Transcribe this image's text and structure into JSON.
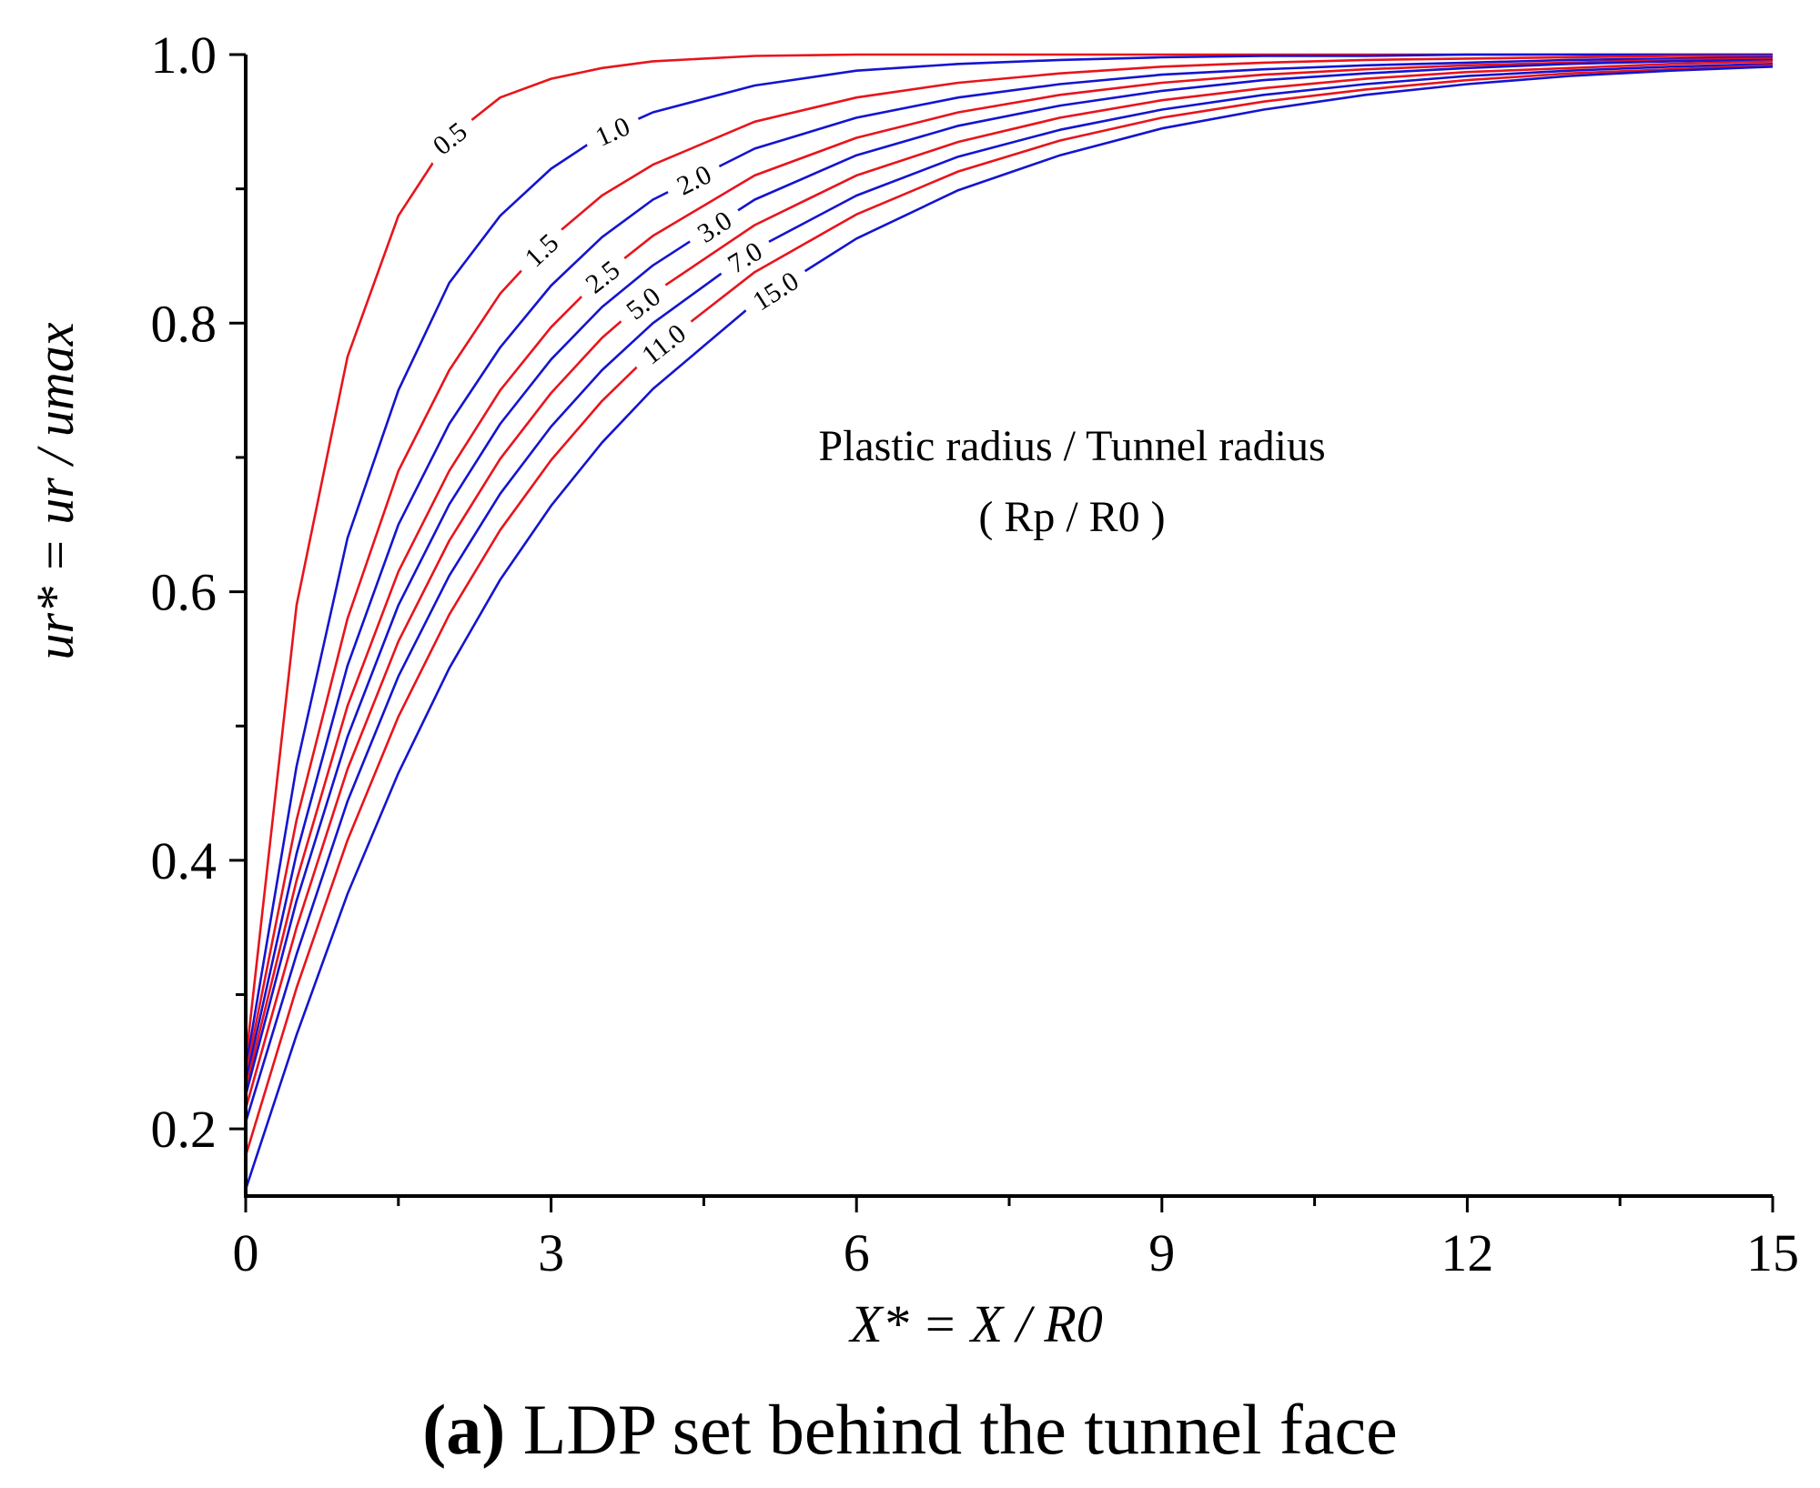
{
  "chart_data": {
    "type": "line",
    "title": "",
    "xlabel": "X* = X / R0",
    "ylabel": "ur* = ur / umax",
    "xlim": [
      0,
      15
    ],
    "ylim": [
      0.15,
      1.0
    ],
    "x_ticks": [
      "0",
      "3",
      "6",
      "9",
      "12",
      "15"
    ],
    "y_ticks": [
      "0.2",
      "0.4",
      "0.6",
      "0.8",
      "1.0"
    ],
    "x_minor_step": 1.5,
    "y_minor_step": 0.1,
    "annotation": {
      "line1": "Plastic radius / Tunnel radius",
      "line2": "( Rp / R0 )"
    },
    "legend_title": "Plastic radius / Tunnel radius (Rp / R0)",
    "colors": {
      "red": "#e8141c",
      "blue": "#1414d0",
      "axis": "#000000"
    },
    "x": [
      0,
      0.5,
      1,
      1.5,
      2,
      2.5,
      3,
      3.5,
      4,
      5,
      6,
      7,
      8,
      9,
      10,
      11,
      12,
      13,
      14,
      15
    ],
    "series": [
      {
        "name": "0.5",
        "color": "red",
        "label_x": 2.0,
        "values": [
          0.25,
          0.59,
          0.775,
          0.88,
          0.938,
          0.968,
          0.982,
          0.99,
          0.995,
          0.999,
          1.0,
          1.0,
          1.0,
          1.0,
          1.0,
          1.0,
          1.0,
          1.0,
          1.0,
          1.0
        ]
      },
      {
        "name": "1.0",
        "color": "blue",
        "label_x": 3.6,
        "values": [
          0.245,
          0.47,
          0.64,
          0.75,
          0.83,
          0.88,
          0.915,
          0.94,
          0.957,
          0.977,
          0.988,
          0.993,
          0.996,
          0.998,
          0.999,
          0.999,
          1.0,
          1.0,
          1.0,
          1.0
        ]
      },
      {
        "name": "1.5",
        "color": "red",
        "label_x": 2.9,
        "values": [
          0.24,
          0.43,
          0.58,
          0.69,
          0.765,
          0.822,
          0.863,
          0.895,
          0.918,
          0.95,
          0.968,
          0.979,
          0.986,
          0.991,
          0.994,
          0.996,
          0.997,
          0.998,
          0.999,
          0.999
        ]
      },
      {
        "name": "2.0",
        "color": "blue",
        "label_x": 4.4,
        "values": [
          0.235,
          0.405,
          0.545,
          0.65,
          0.725,
          0.782,
          0.828,
          0.864,
          0.892,
          0.93,
          0.953,
          0.968,
          0.978,
          0.985,
          0.989,
          0.992,
          0.994,
          0.996,
          0.997,
          0.998
        ]
      },
      {
        "name": "2.5",
        "color": "red",
        "label_x": 3.5,
        "values": [
          0.23,
          0.385,
          0.515,
          0.615,
          0.69,
          0.75,
          0.797,
          0.835,
          0.865,
          0.91,
          0.938,
          0.957,
          0.97,
          0.979,
          0.985,
          0.989,
          0.992,
          0.994,
          0.996,
          0.997
        ]
      },
      {
        "name": "3.0",
        "color": "blue",
        "label_x": 4.6,
        "values": [
          0.225,
          0.37,
          0.492,
          0.59,
          0.665,
          0.725,
          0.773,
          0.812,
          0.843,
          0.892,
          0.925,
          0.947,
          0.962,
          0.973,
          0.981,
          0.986,
          0.99,
          0.993,
          0.995,
          0.996
        ]
      },
      {
        "name": "5.0",
        "color": "red",
        "label_x": 3.9,
        "values": [
          0.215,
          0.35,
          0.468,
          0.563,
          0.638,
          0.699,
          0.748,
          0.789,
          0.822,
          0.873,
          0.91,
          0.935,
          0.953,
          0.966,
          0.975,
          0.982,
          0.987,
          0.99,
          0.993,
          0.995
        ]
      },
      {
        "name": "7.0",
        "color": "blue",
        "label_x": 4.9,
        "values": [
          0.205,
          0.33,
          0.444,
          0.537,
          0.612,
          0.673,
          0.723,
          0.765,
          0.8,
          0.855,
          0.895,
          0.924,
          0.944,
          0.959,
          0.97,
          0.978,
          0.984,
          0.988,
          0.991,
          0.993
        ]
      },
      {
        "name": "11.0",
        "color": "red",
        "label_x": 4.1,
        "values": [
          0.18,
          0.305,
          0.415,
          0.507,
          0.583,
          0.646,
          0.698,
          0.742,
          0.779,
          0.838,
          0.881,
          0.913,
          0.936,
          0.953,
          0.965,
          0.974,
          0.981,
          0.986,
          0.989,
          0.992
        ]
      },
      {
        "name": "15.0",
        "color": "blue",
        "label_x": 5.2,
        "values": [
          0.155,
          0.27,
          0.375,
          0.465,
          0.543,
          0.609,
          0.664,
          0.711,
          0.751,
          0.815,
          0.863,
          0.899,
          0.925,
          0.945,
          0.959,
          0.97,
          0.978,
          0.984,
          0.988,
          0.991
        ]
      }
    ]
  },
  "caption": {
    "letter": "(a)",
    "text": " LDP set behind the tunnel face"
  }
}
